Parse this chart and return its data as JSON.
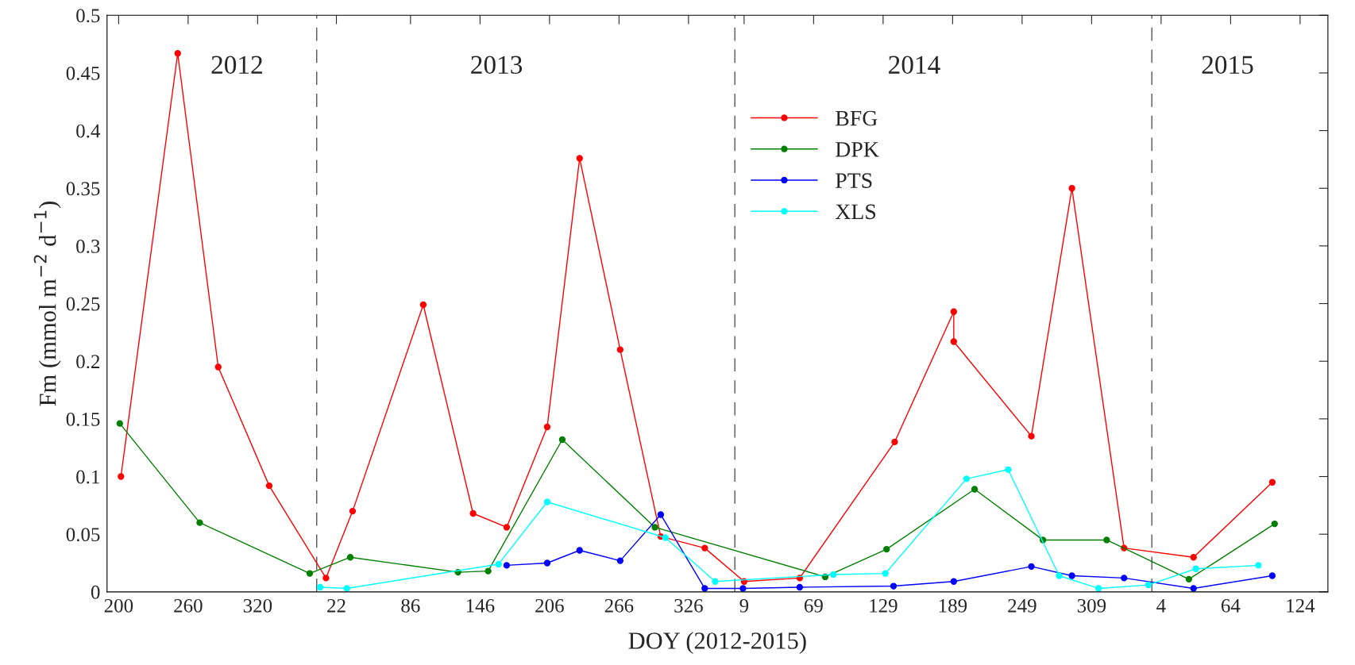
{
  "chart_data": {
    "type": "line",
    "xlabel": "DOY (2012-2015)",
    "ylabel": "Fm (mmol m$^{−2}$ d$^{−1}$)",
    "xlim": [
      "2012-07-08",
      "2015-05-28"
    ],
    "xticks": [
      {
        "value": "2012-07-18",
        "label": "200"
      },
      {
        "value": "2012-09-16",
        "label": "260"
      },
      {
        "value": "2012-11-15",
        "label": "320"
      },
      {
        "value": "2013-01-22",
        "label": "22"
      },
      {
        "value": "2013-03-27",
        "label": "86"
      },
      {
        "value": "2013-05-26",
        "label": "146"
      },
      {
        "value": "2013-07-25",
        "label": "206"
      },
      {
        "value": "2013-09-23",
        "label": "266"
      },
      {
        "value": "2013-11-22",
        "label": "326"
      },
      {
        "value": "2014-01-09",
        "label": "9"
      },
      {
        "value": "2014-03-10",
        "label": "69"
      },
      {
        "value": "2014-05-09",
        "label": "129"
      },
      {
        "value": "2014-07-08",
        "label": "189"
      },
      {
        "value": "2014-09-06",
        "label": "249"
      },
      {
        "value": "2014-11-05",
        "label": "309"
      },
      {
        "value": "2015-01-04",
        "label": "4"
      },
      {
        "value": "2015-03-05",
        "label": "64"
      },
      {
        "value": "2015-05-04",
        "label": "124"
      }
    ],
    "ylim": [
      0,
      0.5
    ],
    "yticks": [
      0,
      0.05,
      0.1,
      0.15,
      0.2,
      0.25,
      0.3,
      0.35,
      0.4,
      0.45,
      0.5
    ],
    "grid": false,
    "legend": "top",
    "marker": "circle",
    "line_style": "solid",
    "ref_lines": [
      {
        "axis": "x",
        "value": "2013-01-05",
        "color": "#555555",
        "line_style": "dashed"
      },
      {
        "axis": "x",
        "value": "2014-01-01",
        "color": "#555555",
        "line_style": "dashed"
      },
      {
        "axis": "x",
        "value": "2014-12-27",
        "color": "#555555",
        "line_style": "dashed"
      }
    ],
    "annotations": [
      "2012",
      "2013",
      "2014",
      "2015"
    ],
    "series": [
      {
        "name": "BFG",
        "color": "#ff0000",
        "x": [
          "2012-07-20",
          "2012-09-07",
          "2012-10-12",
          "2012-11-25",
          "2013-01-13",
          "2013-02-05",
          "2013-04-07",
          "2013-05-20",
          "2013-06-18",
          "2013-07-23",
          "2013-08-20",
          "2013-09-24",
          "2013-10-29",
          "2013-12-06",
          "2014-01-09",
          "2014-02-26",
          "2014-05-19",
          "2014-07-09",
          "2014-07-09",
          "2014-09-14",
          "2014-10-19",
          "2014-12-03",
          "2015-02-01",
          "2015-04-10"
        ],
        "values": [
          0.1,
          0.467,
          0.195,
          0.092,
          0.012,
          0.07,
          0.249,
          0.068,
          0.056,
          0.143,
          0.376,
          0.21,
          0.048,
          0.038,
          0.009,
          0.012,
          0.13,
          0.243,
          0.217,
          0.135,
          0.35,
          0.038,
          0.03,
          0.095
        ]
      },
      {
        "name": "DPK",
        "color": "#008000",
        "x": [
          "2012-07-19",
          "2012-09-26",
          "2012-12-30",
          "2013-02-03",
          "2013-05-07",
          "2013-06-02",
          "2013-08-05",
          "2013-10-24",
          "2014-03-20",
          "2014-05-12",
          "2014-07-27",
          "2014-09-24",
          "2014-11-18",
          "2015-01-28",
          "2015-04-12"
        ],
        "values": [
          0.146,
          0.06,
          0.016,
          0.03,
          0.017,
          0.018,
          0.132,
          0.056,
          0.013,
          0.037,
          0.089,
          0.045,
          0.045,
          0.011,
          0.059
        ]
      },
      {
        "name": "PTS",
        "color": "#0000ff",
        "x": [
          "2013-06-18",
          "2013-07-23",
          "2013-08-20",
          "2013-09-24",
          "2013-10-29",
          "2013-12-06",
          "2014-01-08",
          "2014-02-26",
          "2014-05-18",
          "2014-07-09",
          "2014-09-14",
          "2014-10-19",
          "2014-12-03",
          "2015-02-01",
          "2015-04-10"
        ],
        "values": [
          0.023,
          0.025,
          0.036,
          0.027,
          0.067,
          0.003,
          0.003,
          0.004,
          0.005,
          0.009,
          0.022,
          0.014,
          0.012,
          0.003,
          0.014
        ]
      },
      {
        "name": "XLS",
        "color": "#00ffff",
        "x": [
          "2013-01-08",
          "2013-01-31",
          "2013-06-11",
          "2013-07-23",
          "2013-11-02",
          "2013-12-15",
          "2014-03-27",
          "2014-05-11",
          "2014-07-20",
          "2014-08-25",
          "2014-10-08",
          "2014-11-11",
          "2014-12-24",
          "2015-02-03",
          "2015-03-29"
        ],
        "values": [
          0.004,
          0.003,
          0.024,
          0.078,
          0.047,
          0.009,
          0.015,
          0.016,
          0.098,
          0.106,
          0.014,
          0.003,
          0.006,
          0.02,
          0.023
        ]
      }
    ]
  }
}
